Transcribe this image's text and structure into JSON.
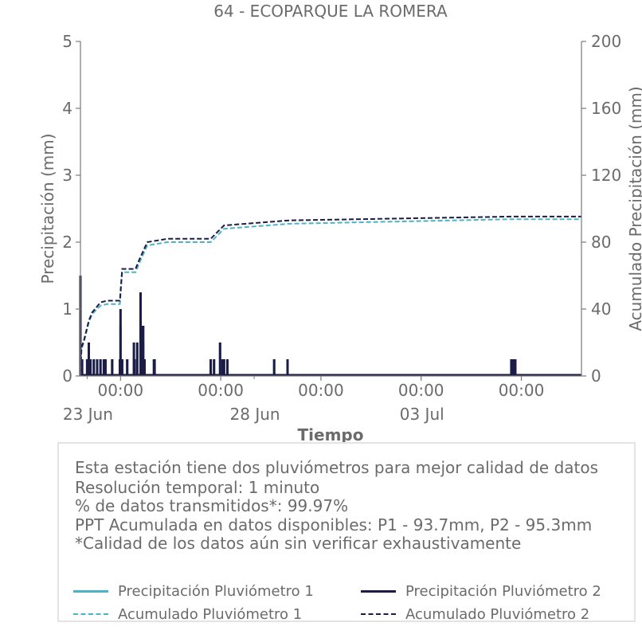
{
  "colors": {
    "p1": "#4bb3c8",
    "p2": "#1c1c47",
    "text": "#6b6b6b",
    "axis": "#7a7a7a"
  },
  "chart_data": {
    "type": "line",
    "title": "64 - ECOPARQUE LA ROMERA",
    "xlabel": "Tiempo",
    "ylabel": "Precipitación (mm)",
    "y2label": "Acumulado Precipitación (mm)",
    "xlim": [
      21.8,
      36.8
    ],
    "ylim": [
      0,
      5
    ],
    "y2lim": [
      0,
      200
    ],
    "yticks": [
      0,
      1,
      2,
      3,
      4,
      5
    ],
    "y2ticks": [
      0,
      40,
      80,
      120,
      160,
      200
    ],
    "xticks": [
      {
        "x": 23.0,
        "label": "00:00"
      },
      {
        "x": 26.0,
        "label": "00:00"
      },
      {
        "x": 29.0,
        "label": "00:00"
      },
      {
        "x": 32.0,
        "label": "00:00"
      },
      {
        "x": 35.0,
        "label": "00:00"
      }
    ],
    "xdate_labels": [
      {
        "x": 22.0,
        "label": "23 Jun"
      },
      {
        "x": 27.0,
        "label": "28 Jun"
      },
      {
        "x": 32.0,
        "label": "03 Jul"
      }
    ],
    "legend_placement": "bottom",
    "series": [
      {
        "name": "Precipitación Pluviómetro 1",
        "axis": "left",
        "style": "solid",
        "x": [
          21.8,
          21.82,
          21.85,
          22.0,
          22.05,
          22.1,
          22.2,
          22.3,
          22.4,
          22.5,
          22.55,
          22.75,
          22.98,
          23.0,
          23.05,
          23.2,
          23.4,
          23.42,
          23.5,
          23.6,
          23.62,
          23.68,
          23.72,
          24.0,
          24.02,
          25.7,
          25.8,
          25.98,
          26.05,
          26.1,
          26.2,
          27.6,
          28.0,
          34.7,
          34.75,
          34.82
        ],
        "values": [
          1.5,
          0.25,
          0.25,
          0.25,
          0.5,
          0.25,
          0.25,
          0.25,
          0.25,
          0.25,
          0.25,
          0.25,
          0.25,
          0.75,
          0.25,
          0.25,
          0.25,
          0.25,
          0.5,
          1.25,
          0.5,
          0.5,
          0.25,
          0.25,
          0.25,
          0.25,
          0.25,
          0.5,
          0.25,
          0.25,
          0.25,
          0.25,
          0.25,
          0.25,
          0.25,
          0.25
        ]
      },
      {
        "name": "Precipitación Pluviómetro 2",
        "axis": "left",
        "style": "solid",
        "x": [
          21.8,
          21.82,
          21.85,
          22.0,
          22.05,
          22.1,
          22.2,
          22.3,
          22.4,
          22.5,
          22.55,
          22.75,
          22.98,
          23.0,
          23.05,
          23.2,
          23.4,
          23.42,
          23.5,
          23.6,
          23.62,
          23.68,
          23.72,
          24.0,
          24.02,
          25.7,
          25.8,
          25.98,
          26.05,
          26.1,
          26.2,
          27.6,
          28.0,
          34.7,
          34.75,
          34.82
        ],
        "values": [
          1.5,
          0.25,
          0.25,
          0.25,
          0.5,
          0.25,
          0.25,
          0.25,
          0.25,
          0.25,
          0.25,
          0.25,
          0.25,
          1.0,
          0.25,
          0.25,
          0.5,
          0.25,
          0.5,
          1.25,
          0.75,
          0.75,
          0.25,
          0.25,
          0.25,
          0.25,
          0.25,
          0.5,
          0.25,
          0.25,
          0.25,
          0.25,
          0.25,
          0.25,
          0.25,
          0.25
        ]
      },
      {
        "name": "Acumulado Pluviómetro 1",
        "axis": "right",
        "style": "dashed",
        "x": [
          21.8,
          21.83,
          21.9,
          22.05,
          22.15,
          22.4,
          22.6,
          22.98,
          23.05,
          23.45,
          23.55,
          23.8,
          24.4,
          25.7,
          26.1,
          28.05,
          34.7,
          36.8
        ],
        "values": [
          0,
          16,
          20,
          32,
          37,
          42,
          43,
          43,
          62,
          62,
          67,
          78,
          80,
          80,
          88,
          91,
          93.7,
          93.7
        ]
      },
      {
        "name": "Acumulado Pluviómetro 2",
        "axis": "right",
        "style": "dashed",
        "x": [
          21.8,
          21.83,
          21.9,
          22.05,
          22.15,
          22.4,
          22.6,
          22.98,
          23.05,
          23.45,
          23.55,
          23.8,
          24.4,
          25.7,
          26.1,
          28.05,
          34.7,
          36.8
        ],
        "values": [
          0,
          17,
          21,
          33,
          38,
          44,
          45,
          45,
          64,
          64,
          69,
          80,
          82,
          82,
          90,
          93,
          95.3,
          95.3
        ]
      }
    ]
  },
  "info": {
    "line1": "Esta estación tiene dos pluviómetros para mejor calidad de datos",
    "line2": "Resolución temporal: 1 minuto",
    "line3": "% de datos transmitidos*: 99.97%",
    "line4": "PPT Acumulada en datos disponibles: P1 - 93.7mm, P2 - 95.3mm",
    "line5": "*Calidad de los datos aún sin verificar exhaustivamente"
  },
  "legend": {
    "p1_precip": "Precipitación Pluviómetro 1",
    "p2_precip": "Precipitación Pluviómetro 2",
    "p1_acum": "Acumulado Pluviómetro 1",
    "p2_acum": "Acumulado Pluviómetro 2"
  }
}
